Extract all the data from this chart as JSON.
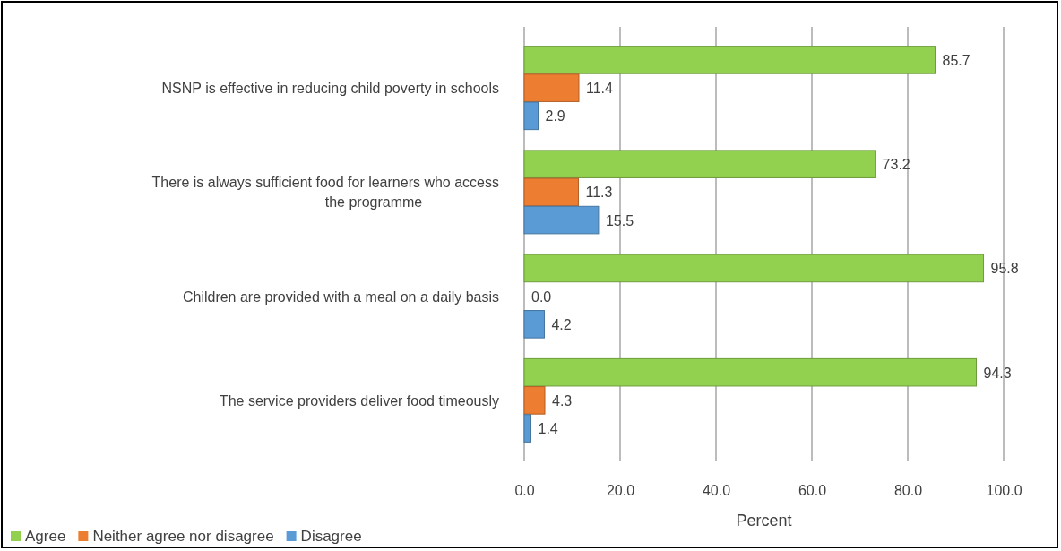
{
  "chart_data": {
    "type": "bar",
    "orientation": "horizontal",
    "xlabel": "Percent",
    "categories": [
      "NSNP is effective in reducing child poverty in schools",
      "There is always sufficient food for learners who access the programme",
      "Children are provided with a meal on a daily basis",
      "The service providers deliver food timeously"
    ],
    "series": [
      {
        "name": "Agree",
        "color": "#92d050",
        "values": [
          85.7,
          73.2,
          95.8,
          94.3
        ],
        "value_labels": [
          "85.7",
          "73.2",
          "95.8",
          "94.3"
        ]
      },
      {
        "name": "Neither agree nor disagree",
        "color": "#ed7d31",
        "values": [
          11.4,
          11.3,
          0.0,
          4.3
        ],
        "value_labels": [
          "11.4",
          "11.3",
          "0.0",
          "4.3"
        ]
      },
      {
        "name": "Disagree",
        "color": "#5b9bd5",
        "values": [
          2.9,
          15.5,
          4.2,
          1.4
        ],
        "value_labels": [
          "2.9",
          "15.5",
          "4.2",
          "1.4"
        ]
      }
    ],
    "xlim": [
      0,
      100
    ],
    "xticks": [
      {
        "value": 0,
        "label": "0.0"
      },
      {
        "value": 20,
        "label": "20.0"
      },
      {
        "value": 40,
        "label": "40.0"
      },
      {
        "value": 60,
        "label": "60.0"
      },
      {
        "value": 80,
        "label": "80.0"
      },
      {
        "value": 100,
        "label": "100.0"
      }
    ],
    "grid": "x",
    "legend": "bottom left"
  }
}
